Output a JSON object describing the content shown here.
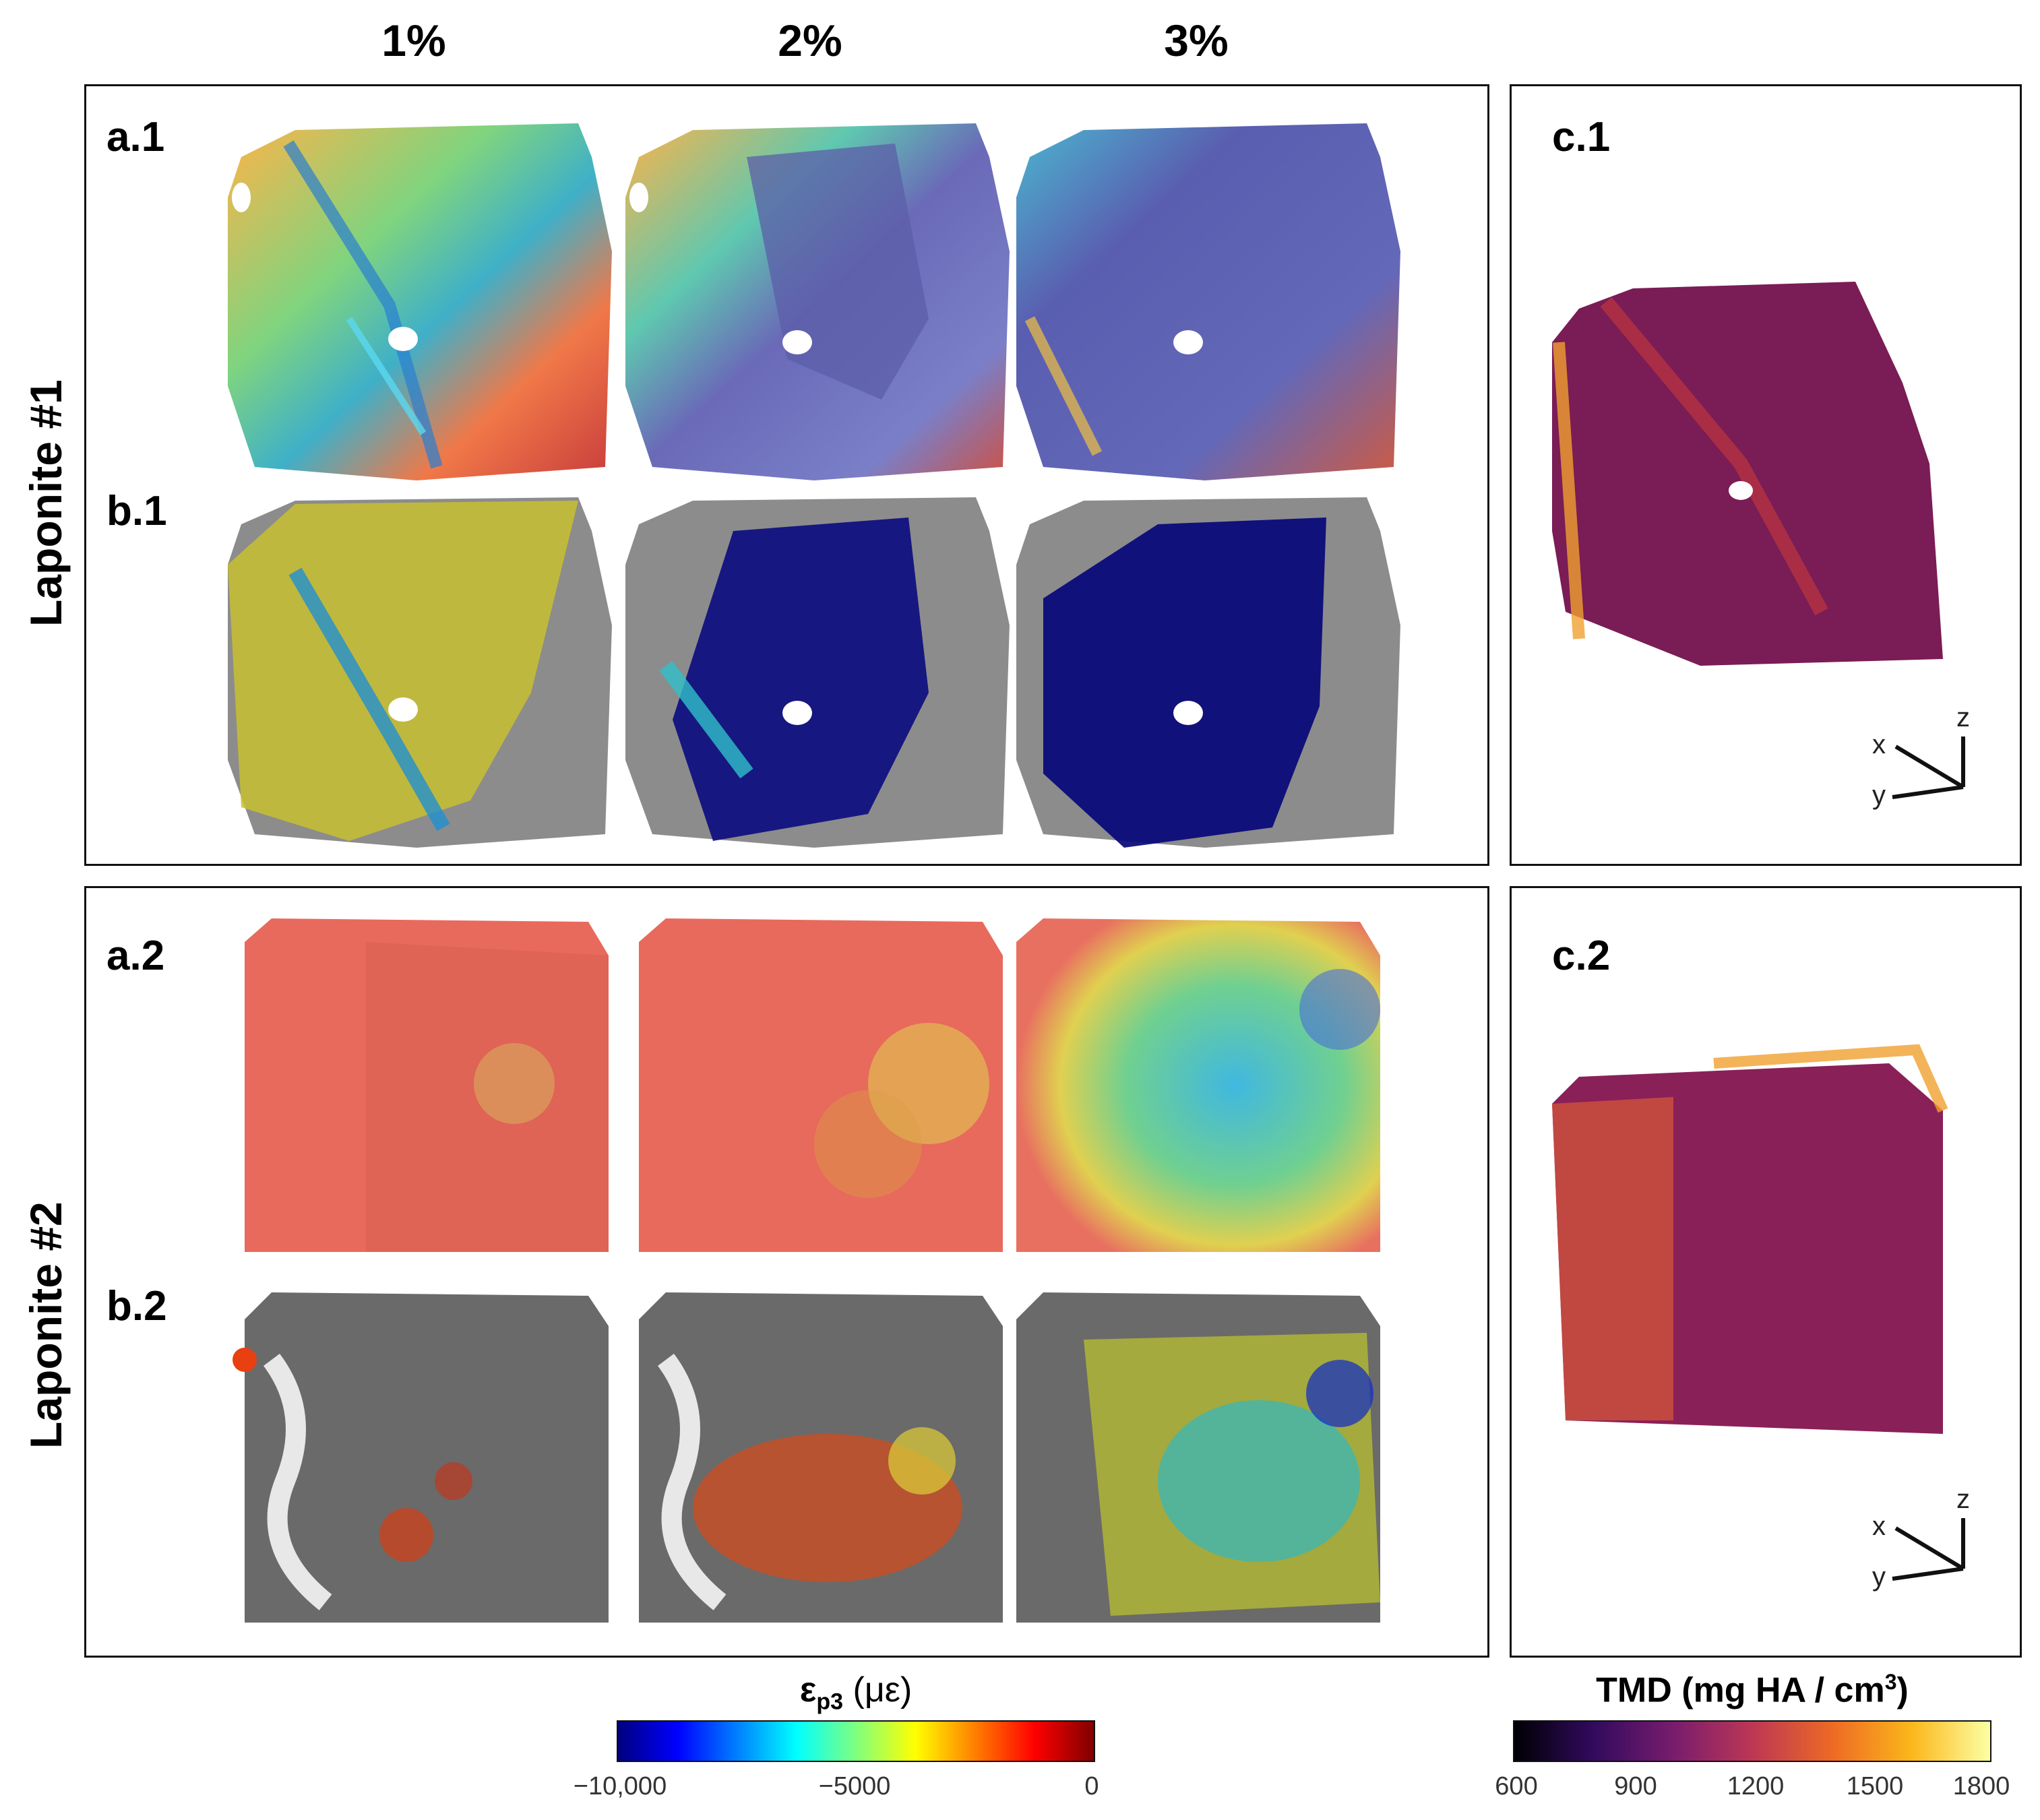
{
  "columns": [
    "1%",
    "2%",
    "3%"
  ],
  "rows": [
    "Laponite #1",
    "Laponite #2"
  ],
  "panel_labels": {
    "a1": "a.1",
    "b1": "b.1",
    "a2": "a.2",
    "b2": "b.2",
    "c1": "c.1",
    "c2": "c.2"
  },
  "axes": {
    "z": "z",
    "x": "x",
    "y": "y"
  },
  "strain_colorbar": {
    "title_symbol": "ε",
    "title_subscript": "p3",
    "title_unit": " (με)",
    "ticks": [
      "−10,000",
      "−5000",
      "0"
    ]
  },
  "tmd_colorbar": {
    "title": "TMD (mg HA / cm",
    "title_superscript": "3",
    "title_close": ")",
    "ticks": [
      "600",
      "900",
      "1200",
      "1500",
      "1800"
    ]
  },
  "colors": {
    "jet": [
      "#00007f",
      "#0000ff",
      "#007fff",
      "#00ffff",
      "#7fff7f",
      "#ffff00",
      "#ff7f00",
      "#ff0000",
      "#7f0000"
    ],
    "inferno": [
      "#000004",
      "#320a5e",
      "#781c6d",
      "#bc3754",
      "#ed6925",
      "#fbb61a",
      "#fcffa4"
    ]
  }
}
